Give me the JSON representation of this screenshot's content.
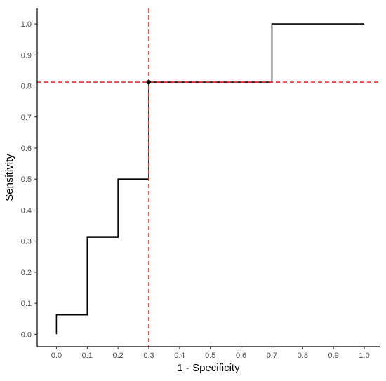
{
  "chart_data": {
    "type": "line",
    "title": "",
    "xlabel": "1 - Specificity",
    "ylabel": "Sensitivity",
    "xlim": [
      -0.0625,
      1.05
    ],
    "ylim": [
      -0.04,
      1.05
    ],
    "x_ticks": [
      0.0,
      0.1,
      0.2,
      0.3,
      0.4,
      0.5,
      0.6,
      0.7,
      0.8,
      0.9,
      1.0
    ],
    "y_ticks": [
      0.0,
      0.1,
      0.2,
      0.3,
      0.4,
      0.5,
      0.6,
      0.7,
      0.8,
      0.9,
      1.0
    ],
    "x_tick_labels": [
      "0.0",
      "0.1",
      "0.2",
      "0.3",
      "0.4",
      "0.5",
      "0.6",
      "0.7",
      "0.8",
      "0.9",
      "1.0"
    ],
    "y_tick_labels": [
      "0.0",
      "0.1",
      "0.2",
      "0.3",
      "0.4",
      "0.5",
      "0.6",
      "0.7",
      "0.8",
      "0.9",
      "1.0"
    ],
    "grid": false,
    "series": [
      {
        "step": "post",
        "color": "#000000",
        "x": [
          0.0,
          0.0,
          0.1,
          0.1,
          0.2,
          0.2,
          0.3,
          0.3,
          0.7,
          0.7,
          1.0
        ],
        "y": [
          0.0,
          0.0625,
          0.0625,
          0.3125,
          0.3125,
          0.5,
          0.5,
          0.8125,
          0.8125,
          1.0,
          1.0
        ]
      }
    ],
    "reference_lines": {
      "vertical_x": 0.3,
      "horizontal_y": 0.8125,
      "color": "#e8342e",
      "style": "dashed"
    },
    "highlight_point": {
      "x": 0.3,
      "y": 0.8125,
      "color": "#000000"
    }
  }
}
